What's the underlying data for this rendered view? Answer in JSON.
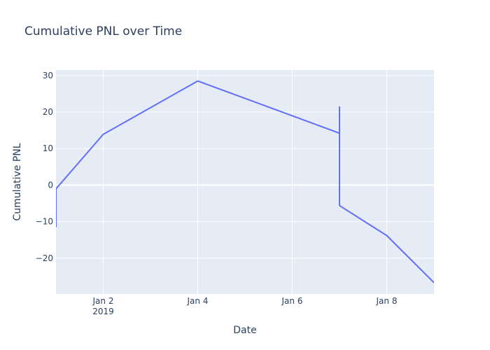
{
  "chart_data": {
    "type": "line",
    "title": "Cumulative PNL over Time",
    "xlabel": "Date",
    "ylabel": "Cumulative PNL",
    "x_axis_type": "date",
    "xlim": [
      "2019-01-01",
      "2019-01-09"
    ],
    "ylim": [
      -29.8,
      31.5
    ],
    "grid": true,
    "legend": "none",
    "x_ticks": [
      {
        "value": "2019-01-02",
        "label": "Jan 2",
        "sublabel": "2019"
      },
      {
        "value": "2019-01-04",
        "label": "Jan 4",
        "sublabel": ""
      },
      {
        "value": "2019-01-06",
        "label": "Jan 6",
        "sublabel": ""
      },
      {
        "value": "2019-01-08",
        "label": "Jan 8",
        "sublabel": ""
      }
    ],
    "y_ticks": [
      {
        "value": 30,
        "label": "30"
      },
      {
        "value": 20,
        "label": "20"
      },
      {
        "value": 10,
        "label": "10"
      },
      {
        "value": 0,
        "label": "0"
      },
      {
        "value": -10,
        "label": "−10"
      },
      {
        "value": -20,
        "label": "−20"
      }
    ],
    "series": [
      {
        "color": "#636efa",
        "x": [
          "2019-01-01",
          "2019-01-01",
          "2019-01-02",
          "2019-01-04",
          "2019-01-07",
          "2019-01-07",
          "2019-01-07",
          "2019-01-08",
          "2019-01-09"
        ],
        "y": [
          -11.5,
          -1.0,
          13.9,
          28.5,
          14.2,
          21.4,
          -5.6,
          -13.8,
          -26.7
        ]
      }
    ]
  },
  "colors": {
    "plot_background": "#e5ecf6",
    "grid": "#ffffff",
    "text": "#2a3f5f",
    "line": "#636efa"
  }
}
